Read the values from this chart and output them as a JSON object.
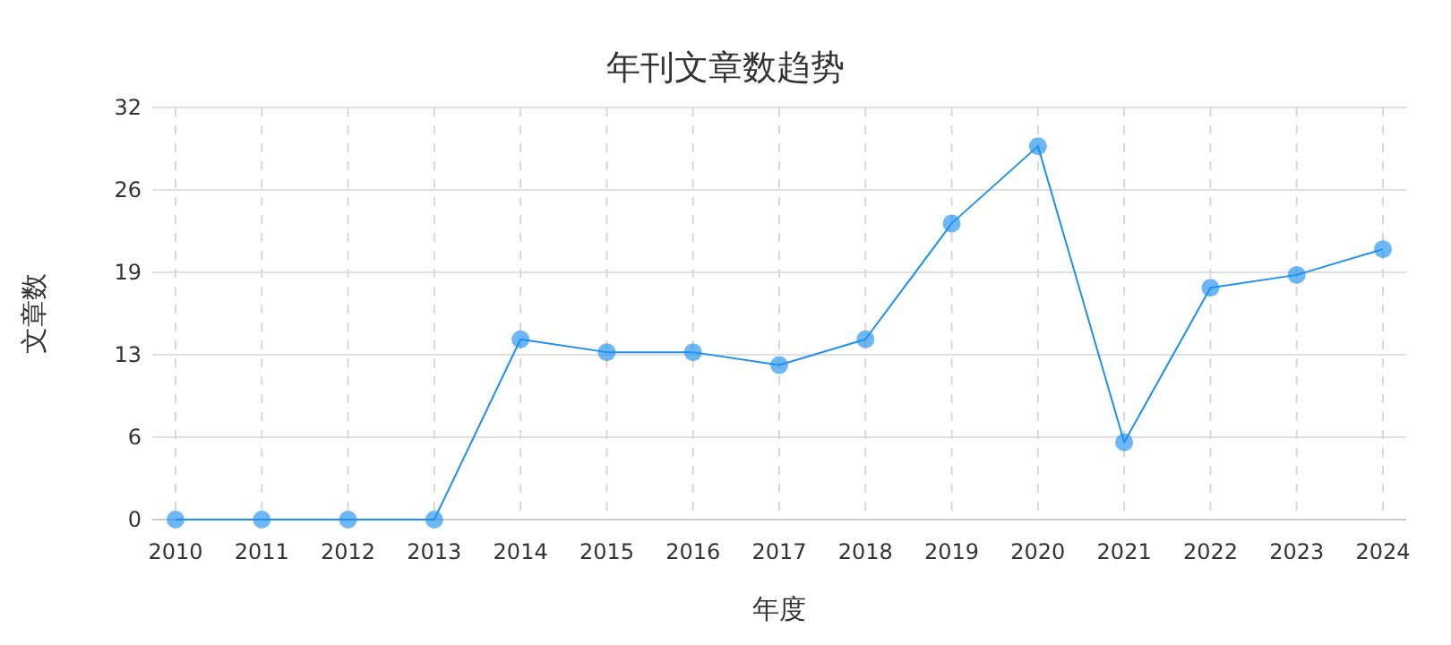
{
  "chart_data": {
    "type": "line",
    "title": "年刊文章数趋势",
    "xlabel": "年度",
    "ylabel": "文章数",
    "categories": [
      "2010",
      "2011",
      "2012",
      "2013",
      "2014",
      "2015",
      "2016",
      "2017",
      "2018",
      "2019",
      "2020",
      "2021",
      "2022",
      "2023",
      "2024"
    ],
    "series": [
      {
        "color": "#1e90f0",
        "values": [
          0,
          0,
          0,
          0,
          14,
          13,
          13,
          12,
          14,
          23,
          29,
          6,
          18,
          19,
          21
        ]
      }
    ],
    "ylim": [
      0,
      32
    ],
    "yticks": [
      0,
      {
        "value": 6.4,
        "label": "6"
      },
      {
        "value": 12.8,
        "label": "13"
      },
      {
        "value": 19.2,
        "label": "19"
      },
      {
        "value": 25.6,
        "label": "26"
      },
      32
    ],
    "grid": true,
    "marker": "circle",
    "line_style": "solid"
  }
}
